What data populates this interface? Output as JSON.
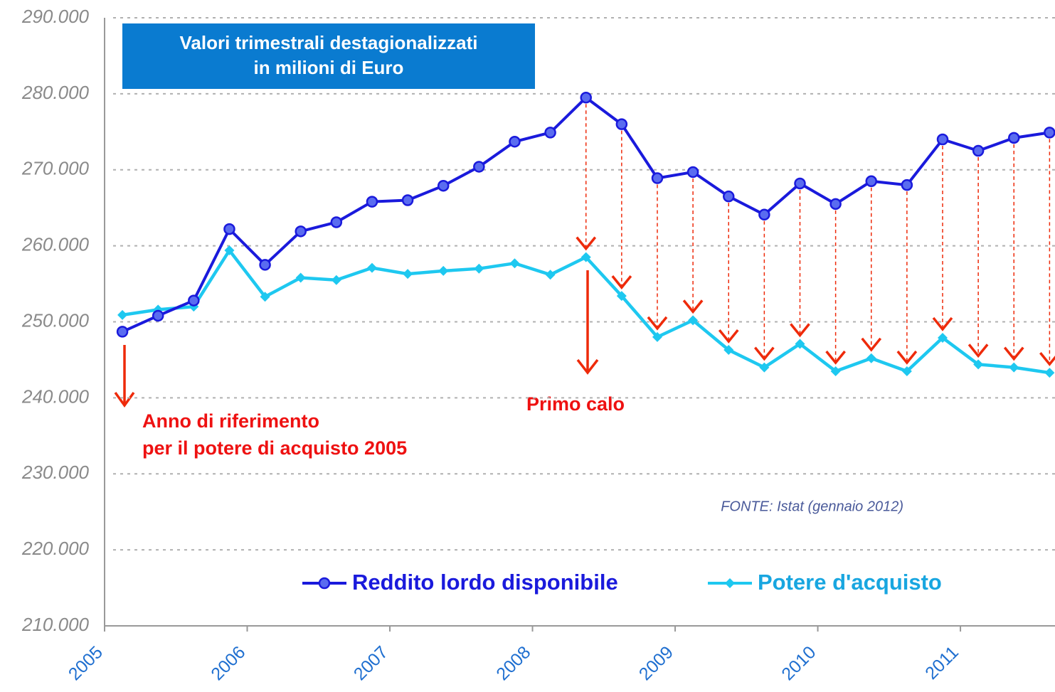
{
  "chart_data": {
    "type": "line",
    "title_lines": [
      "Valori trimestrali destagionalizzati",
      "in milioni di Euro"
    ],
    "annotations": [
      "Anno di riferimento",
      "per il potere di acquisto 2005",
      "Primo calo"
    ],
    "source": "FONTE: Istat (gennaio 2012)",
    "x": [
      2005.125,
      2005.375,
      2005.625,
      2005.875,
      2006.125,
      2006.375,
      2006.625,
      2006.875,
      2007.125,
      2007.375,
      2007.625,
      2007.875,
      2008.125,
      2008.375,
      2008.625,
      2008.875,
      2009.125,
      2009.375,
      2009.625,
      2009.875,
      2010.125,
      2010.375,
      2010.625,
      2010.875,
      2011.125,
      2011.375,
      2011.625
    ],
    "series": [
      {
        "name": "Reddito lordo disponibile",
        "color": "#1a1adc",
        "marker": "circle",
        "values": [
          248700,
          250800,
          252800,
          262200,
          257500,
          261900,
          263100,
          265800,
          266000,
          267900,
          270400,
          273700,
          274900,
          279500,
          276000,
          268900,
          269700,
          266500,
          264100,
          268200,
          265500,
          268500,
          268000,
          274000,
          272500,
          274200,
          274900
        ]
      },
      {
        "name": "Potere d'acquisto",
        "color": "#1ec8f0",
        "marker": "diamond",
        "values": [
          250900,
          251600,
          252000,
          259400,
          253300,
          255800,
          255500,
          257100,
          256300,
          256700,
          257000,
          257700,
          256200,
          258500,
          253400,
          248000,
          250200,
          246300,
          244000,
          247100,
          243500,
          245200,
          243500,
          247900,
          244400,
          244000,
          243300
        ]
      }
    ],
    "xlim": [
      2005,
      2011.663
    ],
    "xticks": [
      2005,
      2006,
      2007,
      2008,
      2009,
      2010,
      2011
    ],
    "ylim": [
      210000,
      290000
    ],
    "yticks": [
      {
        "value": 210000,
        "label": "210.000"
      },
      {
        "value": 220000,
        "label": "220.000"
      },
      {
        "value": 230000,
        "label": "230.000"
      },
      {
        "value": 240000,
        "label": "240.000"
      },
      {
        "value": 250000,
        "label": "250.000"
      },
      {
        "value": 260000,
        "label": "260.000"
      },
      {
        "value": 270000,
        "label": "270.000"
      },
      {
        "value": 280000,
        "label": "280.000"
      },
      {
        "value": 290000,
        "label": "290.000"
      }
    ],
    "grid": true
  }
}
